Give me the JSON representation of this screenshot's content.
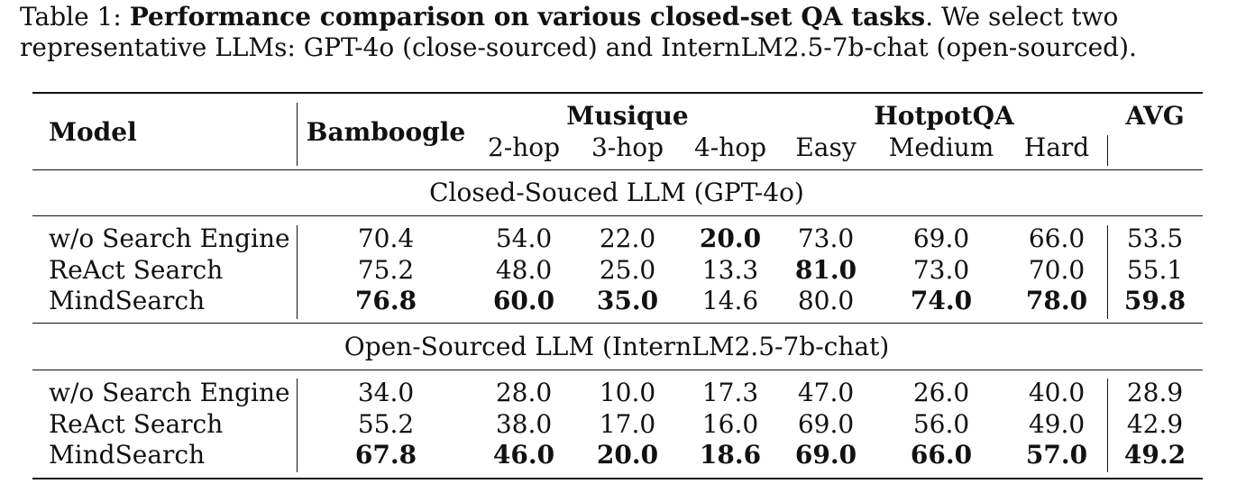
{
  "caption": {
    "label": "Table 1:",
    "title": "Performance comparison on various closed-set QA tasks",
    "text": ". We select two representative LLMs: GPT-4o (close-sourced) and InternLM2.5-7b-chat (open-sourced)."
  },
  "header": {
    "model": "Model",
    "bamboogle": "Bamboogle",
    "musique": "Musique",
    "hotpotqa": "HotpotQA",
    "avg": "AVG",
    "sub": [
      "2-hop",
      "3-hop",
      "4-hop",
      "Easy",
      "Medium",
      "Hard"
    ]
  },
  "groups": [
    {
      "title": "Closed-Souced LLM (GPT-4o)",
      "rows": [
        {
          "model": "w/o Search Engine",
          "values": [
            "70.4",
            "54.0",
            "22.0",
            "20.0",
            "73.0",
            "69.0",
            "66.0",
            "53.5"
          ],
          "bold": [
            false,
            false,
            false,
            true,
            false,
            false,
            false,
            false
          ]
        },
        {
          "model": "ReAct Search",
          "values": [
            "75.2",
            "48.0",
            "25.0",
            "13.3",
            "81.0",
            "73.0",
            "70.0",
            "55.1"
          ],
          "bold": [
            false,
            false,
            false,
            false,
            true,
            false,
            false,
            false
          ]
        },
        {
          "model": "MindSearch",
          "values": [
            "76.8",
            "60.0",
            "35.0",
            "14.6",
            "80.0",
            "74.0",
            "78.0",
            "59.8"
          ],
          "bold": [
            true,
            true,
            true,
            false,
            false,
            true,
            true,
            true
          ]
        }
      ]
    },
    {
      "title": "Open-Sourced LLM (InternLM2.5-7b-chat)",
      "rows": [
        {
          "model": "w/o Search Engine",
          "values": [
            "34.0",
            "28.0",
            "10.0",
            "17.3",
            "47.0",
            "26.0",
            "40.0",
            "28.9"
          ],
          "bold": [
            false,
            false,
            false,
            false,
            false,
            false,
            false,
            false
          ]
        },
        {
          "model": "ReAct Search",
          "values": [
            "55.2",
            "38.0",
            "17.0",
            "16.0",
            "69.0",
            "56.0",
            "49.0",
            "42.9"
          ],
          "bold": [
            false,
            false,
            false,
            false,
            false,
            false,
            false,
            false
          ]
        },
        {
          "model": "MindSearch",
          "values": [
            "67.8",
            "46.0",
            "20.0",
            "18.6",
            "69.0",
            "66.0",
            "57.0",
            "49.2"
          ],
          "bold": [
            true,
            true,
            true,
            true,
            true,
            true,
            true,
            true
          ]
        }
      ]
    }
  ]
}
